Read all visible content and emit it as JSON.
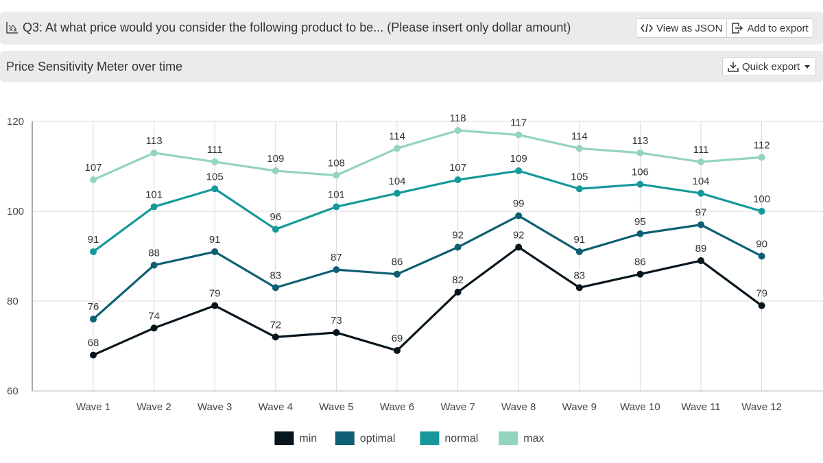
{
  "header": {
    "question": "Q3: At what price would you consider the following product to be... (Please insert only dollar amount)",
    "view_json_label": "View as JSON",
    "add_export_label": "Add to export"
  },
  "subheader": {
    "title": "Price Sensitivity Meter over time",
    "quick_export_label": "Quick export"
  },
  "chart_data": {
    "type": "line",
    "title": "",
    "xlabel": "",
    "ylabel": "",
    "ylim": [
      60,
      120
    ],
    "yticks": [
      60,
      80,
      100,
      120
    ],
    "grid": "vertical",
    "legend_position": "bottom",
    "categories": [
      "Wave 1",
      "Wave 2",
      "Wave 3",
      "Wave 4",
      "Wave 5",
      "Wave 6",
      "Wave 7",
      "Wave 8",
      "Wave 9",
      "Wave 10",
      "Wave 11",
      "Wave 12"
    ],
    "series": [
      {
        "name": "min",
        "color": "#07161c",
        "values": [
          68,
          74,
          79,
          72,
          73,
          69,
          82,
          92,
          83,
          86,
          89,
          79
        ]
      },
      {
        "name": "optimal",
        "color": "#0e5f73",
        "values": [
          76,
          88,
          91,
          83,
          87,
          86,
          92,
          99,
          91,
          95,
          97,
          90
        ]
      },
      {
        "name": "normal",
        "color": "#16999a",
        "values": [
          91,
          101,
          105,
          96,
          101,
          104,
          107,
          109,
          105,
          106,
          104,
          100
        ]
      },
      {
        "name": "max",
        "color": "#93d4bc",
        "values": [
          107,
          113,
          111,
          109,
          108,
          114,
          118,
          117,
          114,
          113,
          111,
          112
        ]
      }
    ]
  }
}
